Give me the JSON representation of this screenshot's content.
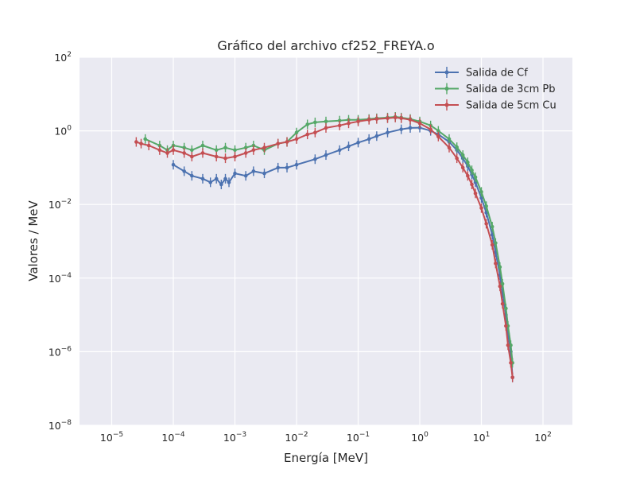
{
  "chart_data": {
    "type": "line",
    "title": "Gráfico del archivo cf252_FREYA.o",
    "xlabel": "Energía [MeV]",
    "ylabel": "Valores / MeV",
    "xscale": "log",
    "yscale": "log",
    "xlim": [
      3e-06,
      300
    ],
    "ylim": [
      1e-08,
      100
    ],
    "grid": true,
    "legend": "top-right",
    "x_ticks": [
      {
        "base": "10",
        "exp": "−5",
        "value": 1e-05
      },
      {
        "base": "10",
        "exp": "−4",
        "value": 0.0001
      },
      {
        "base": "10",
        "exp": "−3",
        "value": 0.001
      },
      {
        "base": "10",
        "exp": "−2",
        "value": 0.01
      },
      {
        "base": "10",
        "exp": "−1",
        "value": 0.1
      },
      {
        "base": "10",
        "exp": "0",
        "value": 1
      },
      {
        "base": "10",
        "exp": "1",
        "value": 10
      },
      {
        "base": "10",
        "exp": "2",
        "value": 100
      }
    ],
    "y_ticks": [
      {
        "base": "10",
        "exp": "−8",
        "value": 1e-08
      },
      {
        "base": "10",
        "exp": "−6",
        "value": 1e-06
      },
      {
        "base": "10",
        "exp": "−4",
        "value": 0.0001
      },
      {
        "base": "10",
        "exp": "−2",
        "value": 0.01
      },
      {
        "base": "10",
        "exp": "0",
        "value": 1
      },
      {
        "base": "10",
        "exp": "2",
        "value": 100
      }
    ],
    "series": [
      {
        "name": "Salida de Cf",
        "color": "#4c72b0",
        "x": [
          0.0001,
          0.00015,
          0.0002,
          0.0003,
          0.0004,
          0.0005,
          0.0006,
          0.0007,
          0.0008,
          0.001,
          0.0015,
          0.002,
          0.003,
          0.005,
          0.007,
          0.01,
          0.02,
          0.03,
          0.05,
          0.07,
          0.1,
          0.15,
          0.2,
          0.3,
          0.5,
          0.7,
          1.0,
          1.5,
          2.0,
          3.0,
          4.0,
          5.0,
          6.0,
          7.0,
          8.0,
          10.0,
          12.0,
          15.0,
          17.0,
          20.0,
          22.0,
          25.0,
          27.0,
          30.0,
          32.0
        ],
        "y": [
          0.12,
          0.08,
          0.06,
          0.05,
          0.04,
          0.05,
          0.035,
          0.05,
          0.04,
          0.07,
          0.06,
          0.08,
          0.07,
          0.1,
          0.1,
          0.12,
          0.17,
          0.22,
          0.3,
          0.38,
          0.48,
          0.6,
          0.72,
          0.9,
          1.1,
          1.2,
          1.22,
          1.0,
          0.8,
          0.5,
          0.3,
          0.18,
          0.11,
          0.065,
          0.04,
          0.015,
          0.006,
          0.0015,
          0.0005,
          0.00012,
          4e-05,
          1e-05,
          3e-06,
          1e-06,
          2e-07
        ]
      },
      {
        "name": "Salida de 3cm Pb",
        "color": "#55a868",
        "x": [
          3.5e-05,
          6e-05,
          8e-05,
          0.0001,
          0.00015,
          0.0002,
          0.0003,
          0.0005,
          0.0007,
          0.001,
          0.0015,
          0.002,
          0.003,
          0.005,
          0.007,
          0.01,
          0.015,
          0.02,
          0.03,
          0.05,
          0.07,
          0.1,
          0.15,
          0.2,
          0.3,
          0.4,
          0.5,
          0.7,
          1.0,
          1.5,
          2.0,
          3.0,
          4.0,
          5.0,
          6.0,
          7.0,
          8.0,
          10.0,
          12.0,
          15.0,
          17.0,
          20.0,
          22.0,
          25.0,
          27.0,
          30.0,
          32.0
        ],
        "y": [
          0.6,
          0.4,
          0.3,
          0.4,
          0.35,
          0.3,
          0.4,
          0.3,
          0.35,
          0.3,
          0.35,
          0.4,
          0.3,
          0.45,
          0.5,
          0.9,
          1.5,
          1.7,
          1.8,
          1.9,
          2.0,
          2.0,
          2.1,
          2.2,
          2.3,
          2.4,
          2.3,
          2.1,
          1.8,
          1.4,
          1.0,
          0.6,
          0.36,
          0.22,
          0.14,
          0.085,
          0.055,
          0.022,
          0.009,
          0.0025,
          0.0009,
          0.0002,
          7e-05,
          1.5e-05,
          5e-06,
          1.5e-06,
          5e-07
        ]
      },
      {
        "name": "Salida de 5cm Cu",
        "color": "#c44e52",
        "x": [
          2.5e-05,
          3e-05,
          4e-05,
          6e-05,
          8e-05,
          0.0001,
          0.00015,
          0.0002,
          0.0003,
          0.0005,
          0.0007,
          0.001,
          0.0015,
          0.002,
          0.003,
          0.005,
          0.007,
          0.01,
          0.015,
          0.02,
          0.03,
          0.05,
          0.07,
          0.1,
          0.15,
          0.2,
          0.3,
          0.4,
          0.5,
          0.7,
          1.0,
          1.5,
          2.0,
          3.0,
          4.0,
          5.0,
          6.0,
          7.0,
          8.0,
          10.0,
          12.0,
          15.0,
          17.0,
          20.0,
          22.0,
          25.0,
          27.0,
          30.0,
          32.0
        ],
        "y": [
          0.5,
          0.45,
          0.4,
          0.3,
          0.25,
          0.3,
          0.25,
          0.2,
          0.25,
          0.2,
          0.18,
          0.2,
          0.25,
          0.3,
          0.35,
          0.45,
          0.5,
          0.6,
          0.8,
          0.9,
          1.2,
          1.4,
          1.6,
          1.8,
          2.0,
          2.1,
          2.2,
          2.3,
          2.2,
          2.0,
          1.6,
          1.1,
          0.7,
          0.35,
          0.18,
          0.1,
          0.06,
          0.035,
          0.02,
          0.008,
          0.003,
          0.0008,
          0.00025,
          6e-05,
          2e-05,
          5e-06,
          1.5e-06,
          5e-07,
          2e-07
        ]
      }
    ]
  }
}
